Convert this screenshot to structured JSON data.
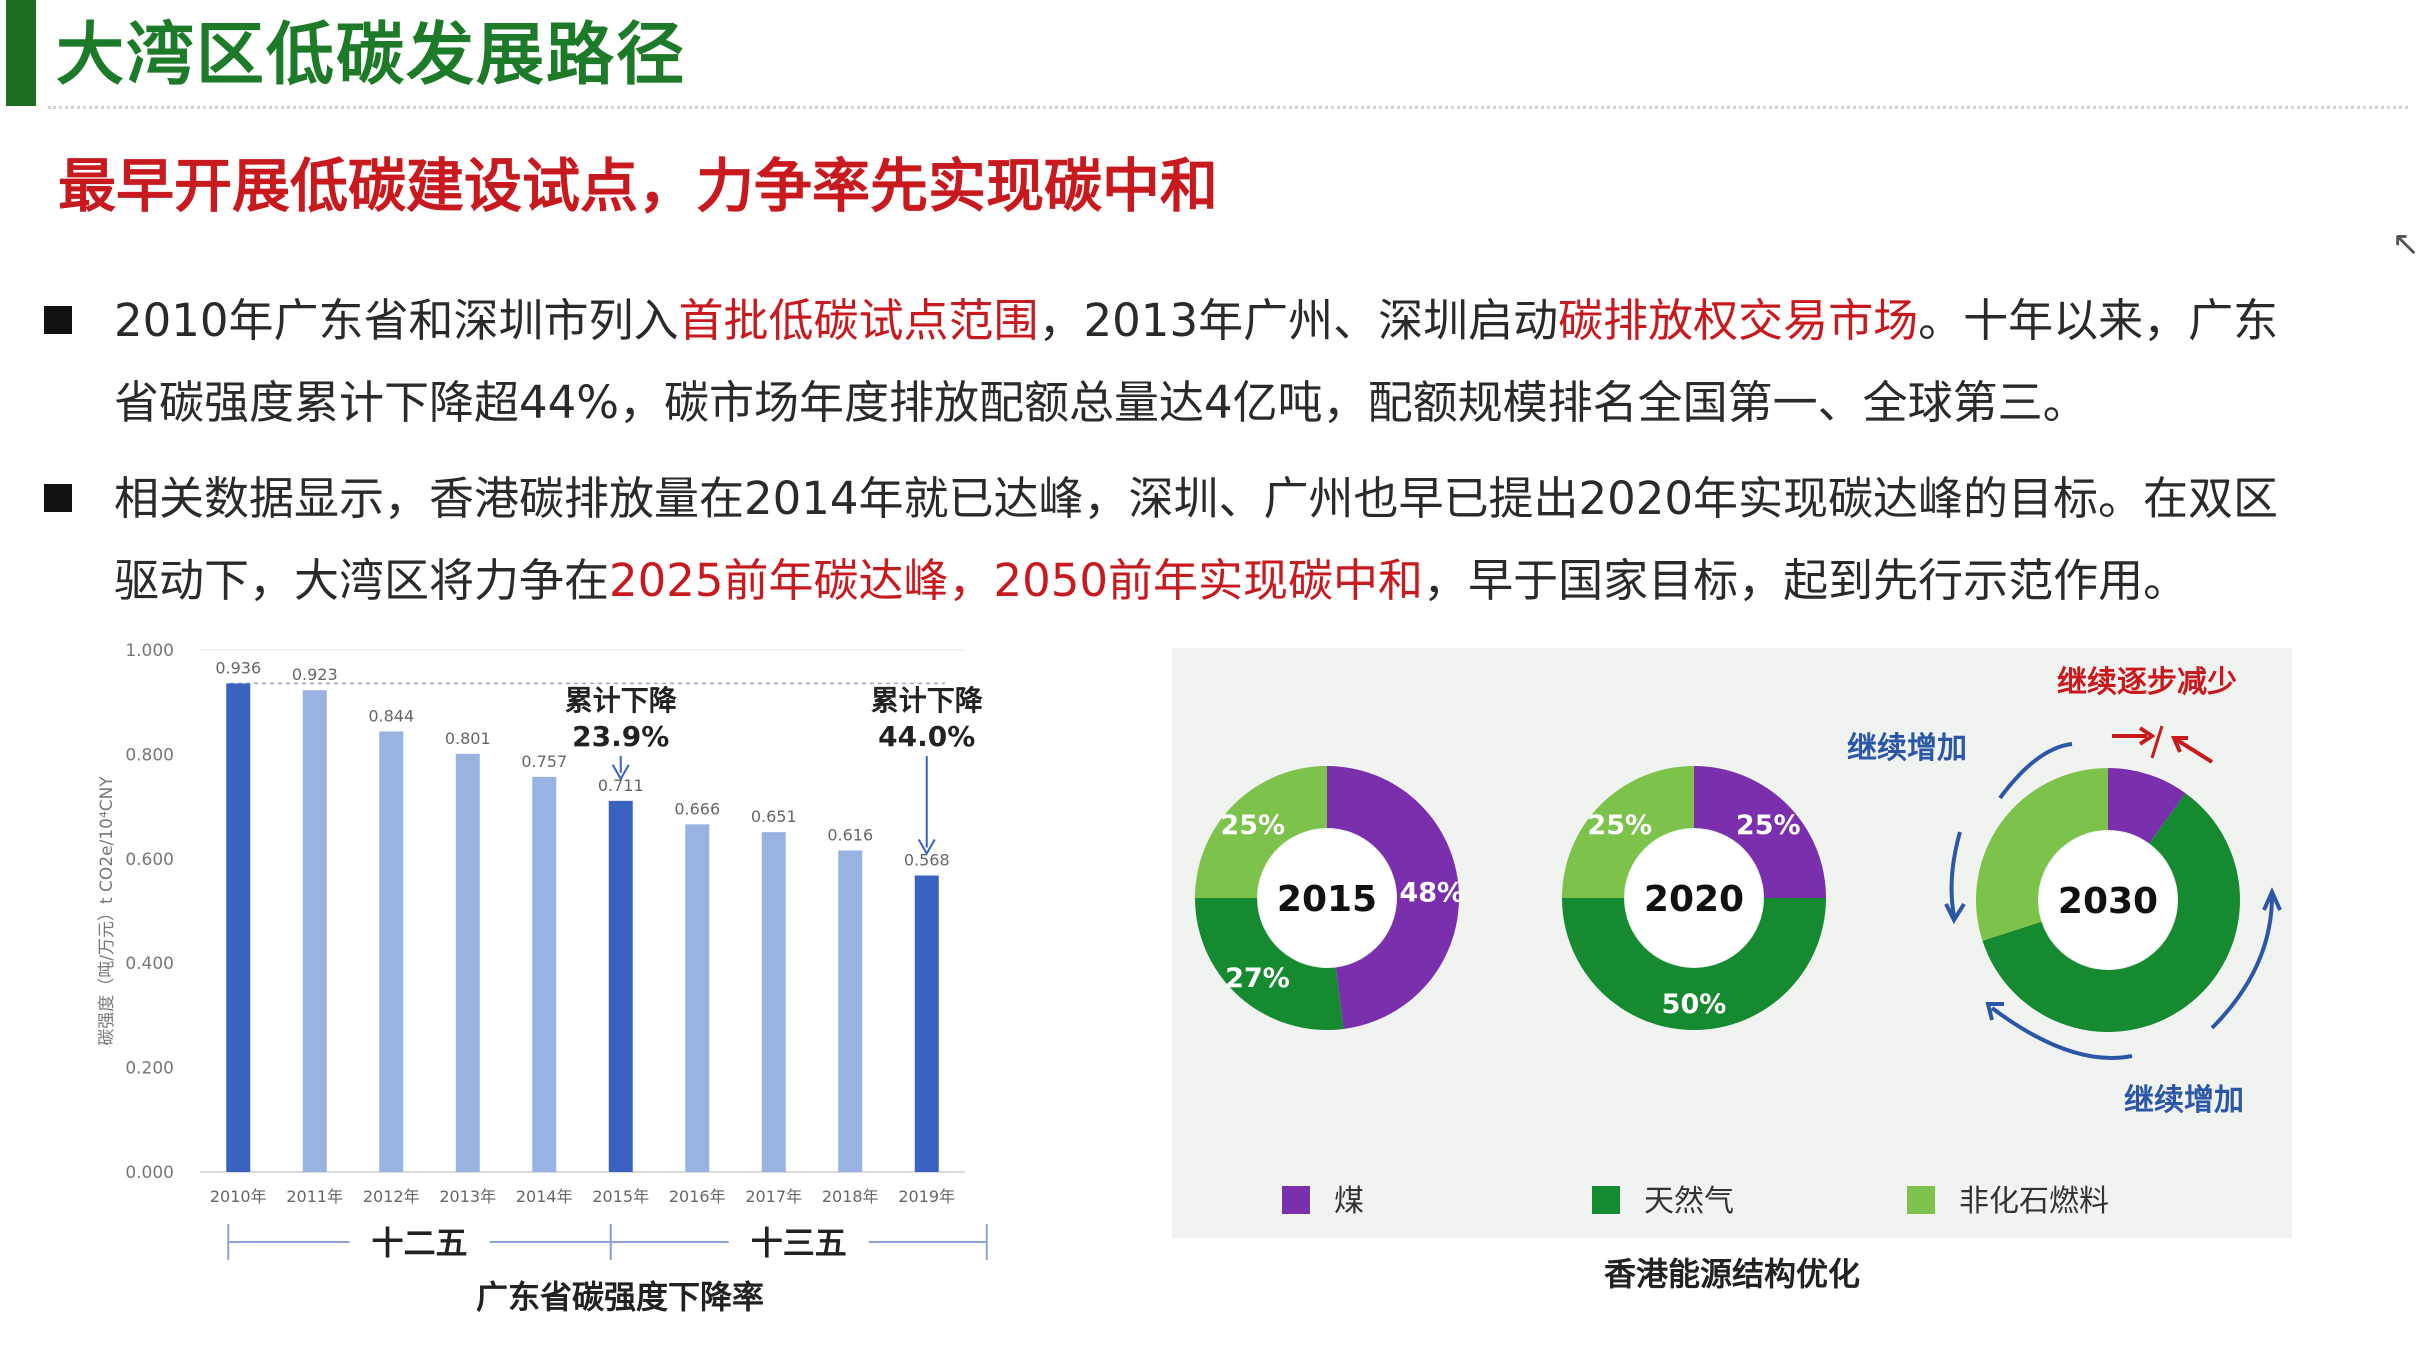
{
  "header": {
    "title": "大湾区低碳发展路径",
    "subtitle": "最早开展低碳建设试点，力争率先实现碳中和"
  },
  "paragraphs": [
    {
      "line1": [
        {
          "t": "2010年广东省和深圳市列入",
          "red": false
        },
        {
          "t": "首批低碳试点范围",
          "red": true
        },
        {
          "t": "，2013年广州、深圳启动",
          "red": false
        },
        {
          "t": "碳排放权交易市场",
          "red": true
        },
        {
          "t": "。十年以来，广东",
          "red": false
        }
      ],
      "line2": [
        {
          "t": "省碳强度累计下降超44%，碳市场年度排放配额总量达4亿吨，配额规模排名全国第一、全球第三。",
          "red": false
        }
      ]
    },
    {
      "line1": [
        {
          "t": "相关数据显示，香港碳排放量在2014年就已达峰，深圳、广州也早已提出2020年实现碳达峰的目标。在双区",
          "red": false
        }
      ],
      "line2": [
        {
          "t": "驱动下，大湾区将力争在",
          "red": false
        },
        {
          "t": "2025前年碳达峰，2050前年实现碳中和",
          "red": true
        },
        {
          "t": "，早于国家目标，起到先行示范作用。",
          "red": false
        }
      ]
    }
  ],
  "chart_data": [
    {
      "type": "bar",
      "title": "广东省碳强度下降率",
      "ylabel": "碳强度（吨/万元）t CO2e/10⁴CNY",
      "ylim": [
        0,
        1.0
      ],
      "yticks": [
        "0.000",
        "0.200",
        "0.400",
        "0.600",
        "0.800",
        "1.000"
      ],
      "categories": [
        "2010年",
        "2011年",
        "2012年",
        "2013年",
        "2014年",
        "2015年",
        "2016年",
        "2017年",
        "2018年",
        "2019年"
      ],
      "values": [
        0.936,
        0.923,
        0.844,
        0.801,
        0.757,
        0.711,
        0.666,
        0.651,
        0.616,
        0.568
      ],
      "value_labels": [
        "0.936",
        "0.923",
        "0.844",
        "0.801",
        "0.757",
        "0.711",
        "0.666",
        "0.651",
        "0.616",
        "0.568"
      ],
      "highlight_indices": [
        0,
        5,
        9
      ],
      "colors": {
        "highlight": "#3a62c0",
        "normal": "#98b2e2"
      },
      "annotations": [
        {
          "line1": "累计下降",
          "line2": "23.9%",
          "at_index": 5
        },
        {
          "line1": "累计下降",
          "line2": "44.0%",
          "at_index": 9
        }
      ],
      "periods": [
        {
          "label": "十二五",
          "from_index": 0,
          "to_index": 5
        },
        {
          "label": "十三五",
          "from_index": 5,
          "to_index": 10
        }
      ]
    },
    {
      "type": "pie",
      "title": "香港能源结构优化",
      "legend": [
        {
          "label": "煤",
          "color": "#7a2fad"
        },
        {
          "label": "天然气",
          "color": "#168a30"
        },
        {
          "label": "非化石燃料",
          "color": "#7dc24a"
        }
      ],
      "donuts": [
        {
          "year": "2015",
          "values": [
            48,
            27,
            25
          ],
          "labels": [
            "48%",
            "27%",
            "25%"
          ]
        },
        {
          "year": "2020",
          "values": [
            25,
            50,
            25
          ],
          "labels": [
            "25%",
            "50%",
            "25%"
          ]
        },
        {
          "year": "2030",
          "values": [
            10,
            60,
            30
          ],
          "labels": [
            "",
            "",
            ""
          ]
        }
      ],
      "callouts": {
        "coal": "继续逐步减少",
        "increase_top": "继续增加",
        "increase_bottom": "继续增加"
      }
    }
  ]
}
